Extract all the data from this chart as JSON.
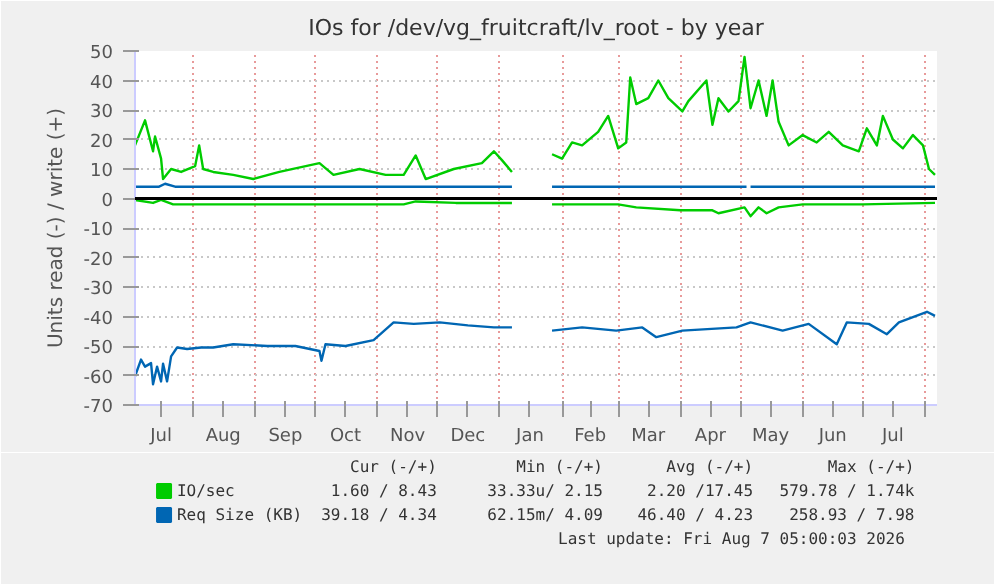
{
  "chart_data": {
    "type": "line",
    "title": "IOs for /dev/vg_fruitcraft/lv_root - by year",
    "ylabel": "Units read (-) / write (+)",
    "xlim": [
      "2025-07-03",
      "2026-08-07"
    ],
    "xticks": [
      {
        "value": "2025-07-16",
        "label": "Jul"
      },
      {
        "value": "2025-08-01",
        "label": null
      },
      {
        "value": "2025-08-16",
        "label": "Aug"
      },
      {
        "value": "2025-09-01",
        "label": null
      },
      {
        "value": "2025-09-16",
        "label": "Sep"
      },
      {
        "value": "2025-10-01",
        "label": null
      },
      {
        "value": "2025-10-16",
        "label": "Oct"
      },
      {
        "value": "2025-11-01",
        "label": null
      },
      {
        "value": "2025-11-16",
        "label": "Nov"
      },
      {
        "value": "2025-12-01",
        "label": null
      },
      {
        "value": "2025-12-16",
        "label": "Dec"
      },
      {
        "value": "2026-01-01",
        "label": null
      },
      {
        "value": "2026-01-16",
        "label": "Jan"
      },
      {
        "value": "2026-02-01",
        "label": null
      },
      {
        "value": "2026-02-15",
        "label": "Feb"
      },
      {
        "value": "2026-03-01",
        "label": null
      },
      {
        "value": "2026-03-16",
        "label": "Mar"
      },
      {
        "value": "2026-04-01",
        "label": null
      },
      {
        "value": "2026-04-16",
        "label": "Apr"
      },
      {
        "value": "2026-05-01",
        "label": null
      },
      {
        "value": "2026-05-16",
        "label": "May"
      },
      {
        "value": "2026-06-01",
        "label": null
      },
      {
        "value": "2026-06-16",
        "label": "Jun"
      },
      {
        "value": "2026-07-01",
        "label": null
      },
      {
        "value": "2026-07-16",
        "label": "Jul"
      },
      {
        "value": "2026-08-01",
        "label": null
      }
    ],
    "ylim": [
      -70,
      50
    ],
    "yticks": [
      -70,
      -60,
      -50,
      -40,
      -30,
      -20,
      -10,
      0,
      10,
      20,
      30,
      40,
      50
    ],
    "grid": true,
    "legend": "bottom",
    "ref_lines": [
      {
        "axis": "y",
        "value": 0,
        "label": null,
        "color": "#000000"
      }
    ],
    "series": [
      {
        "name": "IO/sec",
        "color": "#00cc00",
        "x": [
          "2025-07-03",
          "2025-07-08",
          "2025-07-12",
          "2025-07-13",
          "2025-07-16",
          "2025-07-17",
          "2025-07-21",
          "2025-07-26",
          "2025-08-02",
          "2025-08-04",
          "2025-08-06",
          "2025-08-11",
          "2025-08-21",
          "2025-08-31",
          "2025-09-13",
          "2025-10-03",
          "2025-10-10",
          "2025-10-23",
          "2025-11-05",
          "2025-11-14",
          "2025-11-20",
          "2025-11-25",
          "2025-12-09",
          "2025-12-23",
          "2025-12-29",
          "2026-01-02",
          "2026-01-07",
          "2026-01-15",
          "2026-01-27",
          "2026-02-01",
          "2026-02-06",
          "2026-02-11",
          "2026-02-19",
          "2026-02-24",
          "2026-03-01",
          "2026-03-05",
          "2026-03-07",
          "2026-03-10",
          "2026-03-16",
          "2026-03-21",
          "2026-03-26",
          "2026-04-02",
          "2026-04-05",
          "2026-04-14",
          "2026-04-17",
          "2026-04-20",
          "2026-04-25",
          "2026-04-30",
          "2026-05-03",
          "2026-05-06",
          "2026-05-10",
          "2026-05-14",
          "2026-05-17",
          "2026-05-20",
          "2026-05-25",
          "2026-06-01",
          "2026-06-08",
          "2026-06-14",
          "2026-06-21",
          "2026-06-29",
          "2026-07-03",
          "2026-07-08",
          "2026-07-11",
          "2026-07-16",
          "2026-07-21",
          "2026-07-26",
          "2026-07-31",
          "2026-08-03",
          "2026-08-06"
        ],
        "values": [
          18,
          26.5,
          16,
          21,
          13.5,
          6.6,
          10,
          9,
          11,
          18,
          10,
          9,
          8,
          6.6,
          9,
          12,
          8,
          10,
          8,
          8,
          14.6,
          6.6,
          10,
          12,
          16,
          13,
          9,
          null,
          15,
          13.5,
          19,
          18,
          22.6,
          28,
          17,
          19,
          41,
          32,
          34,
          40,
          34,
          29.5,
          33,
          40,
          25,
          34,
          29.5,
          33,
          48,
          30.6,
          40,
          28,
          40,
          26,
          18,
          21.5,
          19,
          22.6,
          18,
          16,
          23.8,
          18,
          28,
          20,
          17,
          21.5,
          18,
          10,
          8
        ]
      },
      {
        "color": "#00cc00",
        "x": [
          "2025-07-03",
          "2025-07-12",
          "2025-07-16",
          "2025-07-22",
          "2025-11-14",
          "2025-11-20",
          "2025-12-10",
          "2026-01-07",
          "2026-01-15",
          "2026-01-27",
          "2026-03-01",
          "2026-03-10",
          "2026-04-01",
          "2026-04-17",
          "2026-04-20",
          "2026-05-03",
          "2026-05-06",
          "2026-05-10",
          "2026-05-14",
          "2026-05-20",
          "2026-06-01",
          "2026-07-01",
          "2026-08-06"
        ],
        "values": [
          -0.5,
          -1.5,
          -0.5,
          -2,
          -2,
          -1,
          -1.5,
          -1.5,
          null,
          -2,
          -2,
          -3,
          -4,
          -4,
          -5,
          -3,
          -6,
          -3,
          -5,
          -3,
          -2,
          -2,
          -1.5
        ]
      },
      {
        "name": "Req Size (KB)",
        "color": "#0066b3",
        "x": [
          "2025-07-03",
          "2025-07-15",
          "2025-07-18",
          "2025-07-23",
          "2026-01-07",
          "2026-01-15",
          "2026-01-27",
          "2026-05-04",
          "2026-05-05",
          "2026-05-06",
          "2026-08-06"
        ],
        "values": [
          4,
          4,
          5,
          4,
          4,
          null,
          4,
          4,
          null,
          4,
          4
        ]
      },
      {
        "color": "#0066b3",
        "x": [
          "2025-07-03",
          "2025-07-06",
          "2025-07-08",
          "2025-07-11",
          "2025-07-12",
          "2025-07-14",
          "2025-07-16",
          "2025-07-17",
          "2025-07-19",
          "2025-07-21",
          "2025-07-24",
          "2025-07-29",
          "2025-08-05",
          "2025-08-11",
          "2025-08-21",
          "2025-09-07",
          "2025-09-21",
          "2025-10-03",
          "2025-10-04",
          "2025-10-06",
          "2025-10-16",
          "2025-10-30",
          "2025-11-09",
          "2025-11-19",
          "2025-12-02",
          "2025-12-16",
          "2025-12-29",
          "2026-01-02",
          "2026-01-07",
          "2026-01-15",
          "2026-01-27",
          "2026-02-11",
          "2026-02-28",
          "2026-03-13",
          "2026-03-20",
          "2026-04-02",
          "2026-04-29",
          "2026-05-06",
          "2026-05-22",
          "2026-06-04",
          "2026-06-18",
          "2026-06-23",
          "2026-07-04",
          "2026-07-13",
          "2026-07-19",
          "2026-08-02",
          "2026-08-06"
        ],
        "values": [
          -60.3,
          -54.6,
          -57,
          -55.8,
          -63,
          -57,
          -62,
          -56,
          -62,
          -53.5,
          -50.5,
          -51,
          -50.5,
          -50.5,
          -49.4,
          -50,
          -50,
          -51.7,
          -55,
          -49.4,
          -50,
          -48,
          -42,
          -42.5,
          -42,
          -43,
          -43.7,
          -43.7,
          -43.7,
          null,
          -44.8,
          -43.7,
          -44.8,
          -43.7,
          -47,
          -44.8,
          -43.7,
          -42,
          -44.8,
          -42.5,
          -49.4,
          -42,
          -42.5,
          -46,
          -42,
          -38.4,
          -39.8
        ]
      }
    ],
    "annotations": [
      "Cur (-/+)",
      "Min (-/+)",
      "Avg (-/+)",
      "Max (-/+)",
      "1.60 / 8.43",
      "33.33u/ 2.15",
      "2.20 /17.45",
      "579.78 / 1.74k",
      "39.18 / 4.34",
      "62.15m/ 4.09",
      "46.40 / 4.23",
      "258.93 / 7.98",
      "Last update: Fri Aug  7 05:00:03 2026"
    ]
  }
}
